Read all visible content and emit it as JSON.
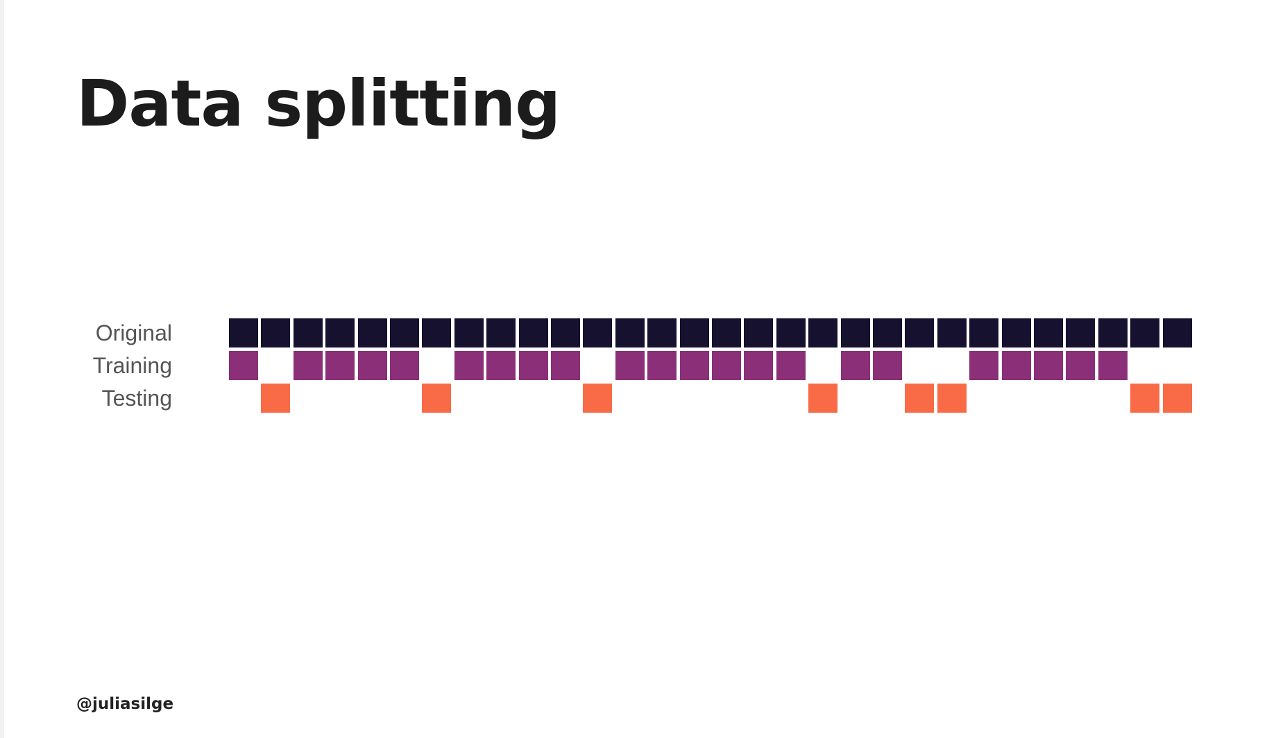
{
  "title": "Data splitting",
  "footer": "@juliasilge",
  "chart_data": {
    "type": "table",
    "rows": [
      {
        "label": "Original",
        "color": "#15112e",
        "present": [
          0,
          1,
          2,
          3,
          4,
          5,
          6,
          7,
          8,
          9,
          10,
          11,
          12,
          13,
          14,
          15,
          16,
          17,
          18,
          19,
          20,
          21,
          22,
          23,
          24,
          25,
          26,
          27,
          28,
          29
        ]
      },
      {
        "label": "Training",
        "color": "#8a2f78",
        "present": [
          0,
          2,
          3,
          4,
          5,
          7,
          8,
          9,
          10,
          12,
          13,
          14,
          15,
          16,
          17,
          19,
          20,
          23,
          24,
          25,
          26,
          27
        ]
      },
      {
        "label": "Testing",
        "color": "#f96a47",
        "present": [
          1,
          6,
          11,
          18,
          21,
          22,
          28,
          29
        ]
      }
    ],
    "n_observations": 30
  }
}
